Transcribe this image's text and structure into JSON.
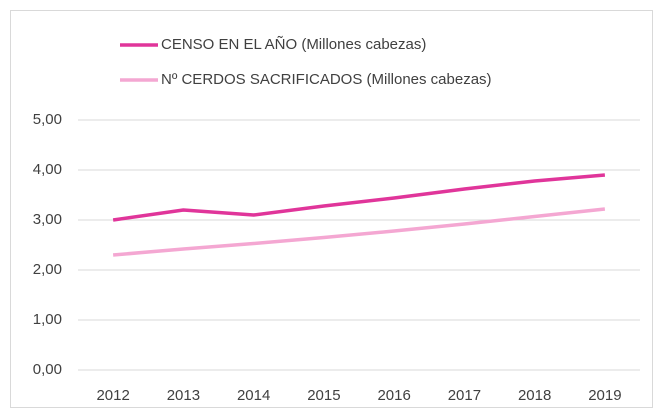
{
  "chart_data": {
    "type": "line",
    "categories": [
      "2012",
      "2013",
      "2014",
      "2015",
      "2016",
      "2017",
      "2018",
      "2019"
    ],
    "series": [
      {
        "name": "CENSO EN EL AÑO (Millones cabezas)",
        "color": "#e0359a",
        "values": [
          3.0,
          3.2,
          3.1,
          3.28,
          3.44,
          3.62,
          3.78,
          3.9
        ]
      },
      {
        "name": "Nº CERDOS SACRIFICADOS (Millones cabezas)",
        "color": "#f4a7d2",
        "values": [
          2.3,
          2.42,
          2.53,
          2.65,
          2.78,
          2.92,
          3.07,
          3.22
        ]
      }
    ],
    "ylim": [
      0,
      5
    ],
    "yticks": [
      {
        "value": 0,
        "label": "0,00"
      },
      {
        "value": 1,
        "label": "1,00"
      },
      {
        "value": 2,
        "label": "2,00"
      },
      {
        "value": 3,
        "label": "3,00"
      },
      {
        "value": 4,
        "label": "4,00"
      },
      {
        "value": 5,
        "label": "5,00"
      }
    ],
    "grid": true,
    "legend": "top"
  }
}
